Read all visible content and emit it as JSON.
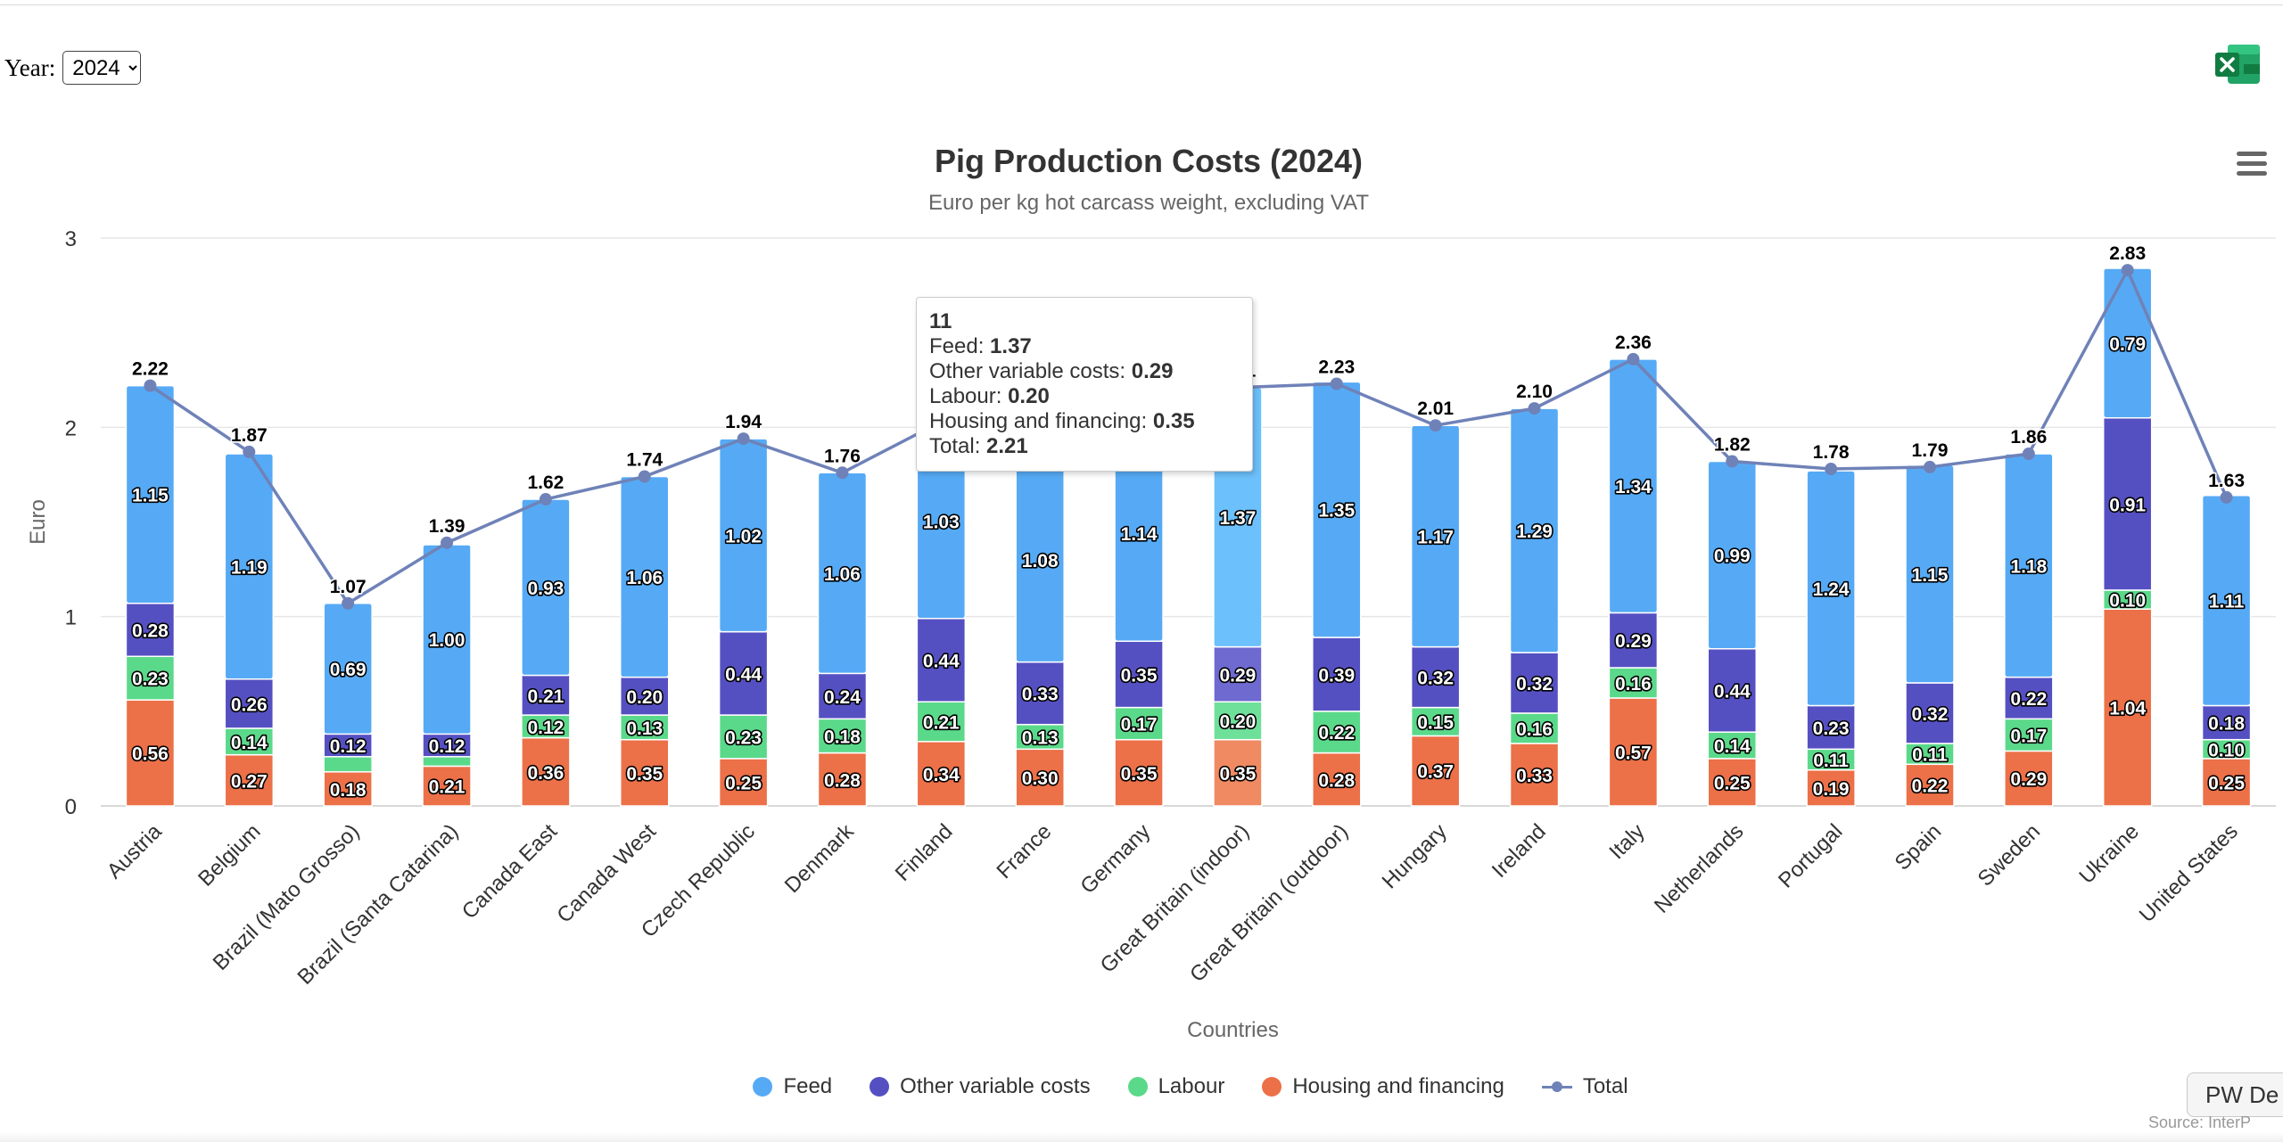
{
  "controls": {
    "year_label": "Year:",
    "year_options": [
      "2024"
    ],
    "year_selected": "2024"
  },
  "icons": {
    "excel": "excel-export-icon",
    "menu": "hamburger-menu-icon"
  },
  "colors": {
    "feed": "#56aaf5",
    "other": "#5550c2",
    "labour": "#5bd98a",
    "housing": "#ec7048",
    "total": "#6f82b8"
  },
  "chart_data": {
    "type": "bar",
    "stacked": true,
    "title": "Pig Production Costs (2024)",
    "subtitle": "Euro per kg hot carcass weight, excluding VAT",
    "xlabel": "Countries",
    "ylabel": "Euro",
    "ylim": [
      0,
      3
    ],
    "yticks": [
      "0",
      "1",
      "2",
      "3"
    ],
    "grid": true,
    "legend_position": "bottom",
    "categories": [
      "Austria",
      "Belgium",
      "Brazil (Mato Grosso)",
      "Brazil (Santa Catarina)",
      "Canada East",
      "Canada West",
      "Czech Republic",
      "Denmark",
      "Finland",
      "France",
      "Germany",
      "Great Britain (indoor)",
      "Great Britain (outdoor)",
      "Hungary",
      "Ireland",
      "Italy",
      "Netherlands",
      "Portugal",
      "Spain",
      "Sweden",
      "Ukraine",
      "United States"
    ],
    "series": [
      {
        "name": "Housing and financing",
        "values": [
          0.56,
          0.27,
          0.18,
          0.21,
          0.36,
          0.35,
          0.25,
          0.28,
          0.34,
          0.3,
          0.35,
          0.35,
          0.28,
          0.37,
          0.33,
          0.57,
          0.25,
          0.19,
          0.22,
          0.29,
          1.04,
          0.25
        ]
      },
      {
        "name": "Labour",
        "values": [
          0.23,
          0.14,
          0.08,
          0.05,
          0.12,
          0.13,
          0.23,
          0.18,
          0.21,
          0.13,
          0.17,
          0.2,
          0.22,
          0.15,
          0.16,
          0.16,
          0.14,
          0.11,
          0.11,
          0.17,
          0.1,
          0.1
        ]
      },
      {
        "name": "Other variable costs",
        "values": [
          0.28,
          0.26,
          0.12,
          0.12,
          0.21,
          0.2,
          0.44,
          0.24,
          0.44,
          0.33,
          0.35,
          0.29,
          0.39,
          0.32,
          0.32,
          0.29,
          0.44,
          0.23,
          0.32,
          0.22,
          0.91,
          0.18
        ]
      },
      {
        "name": "Feed",
        "values": [
          1.15,
          1.19,
          0.69,
          1.0,
          0.93,
          1.06,
          1.02,
          1.06,
          1.03,
          1.08,
          1.14,
          1.37,
          1.35,
          1.17,
          1.29,
          1.34,
          0.99,
          1.24,
          1.15,
          1.18,
          0.79,
          1.11
        ]
      },
      {
        "name": "Total",
        "values": [
          2.22,
          1.87,
          1.07,
          1.39,
          1.62,
          1.74,
          1.94,
          1.76,
          2.03,
          1.84,
          2.01,
          2.21,
          2.23,
          2.01,
          2.1,
          2.36,
          1.82,
          1.78,
          1.79,
          1.86,
          2.83,
          1.63
        ]
      }
    ],
    "value_labels": {
      "Housing and financing": [
        "0.56",
        "0.27",
        "0.18",
        "0.21",
        "0.36",
        "0.35",
        "0.25",
        "0.28",
        "0.34",
        "0.30",
        "0.35",
        "0.35",
        "0.28",
        "0.37",
        "0.33",
        "0.57",
        "0.25",
        "0.19",
        "0.22",
        "0.29",
        "1.04",
        "0.25"
      ],
      "Labour": [
        "0.23",
        "0.14",
        "",
        "",
        "0.12",
        "0.13",
        "0.23",
        "0.18",
        "0.21",
        "0.13",
        "0.17",
        "0.20",
        "0.22",
        "0.15",
        "0.16",
        "0.16",
        "0.14",
        "0.11",
        "0.11",
        "0.17",
        "0.10",
        "0.10"
      ],
      "Other variable costs": [
        "0.28",
        "0.26",
        "0.12",
        "0.12",
        "0.21",
        "0.20",
        "0.44",
        "0.24",
        "0.44",
        "0.33",
        "0.35",
        "0.29",
        "0.39",
        "0.32",
        "0.32",
        "0.29",
        "0.44",
        "0.23",
        "0.32",
        "0.22",
        "0.91",
        "0.18"
      ],
      "Feed": [
        "1.15",
        "1.19",
        "0.69",
        "1.00",
        "0.93",
        "1.06",
        "1.02",
        "1.06",
        "1.03",
        "1.08",
        "1.14",
        "1.37",
        "1.35",
        "1.17",
        "1.29",
        "1.34",
        "0.99",
        "1.24",
        "1.15",
        "1.18",
        "0.79",
        "1.11"
      ],
      "Total": [
        "2.22",
        "1.87",
        "1.07",
        "1.39",
        "1.62",
        "1.74",
        "1.94",
        "1.76",
        "",
        "",
        "",
        "2.21",
        "2.23",
        "2.01",
        "2.10",
        "2.36",
        "1.82",
        "1.78",
        "1.79",
        "1.86",
        "2.83",
        "1.63"
      ]
    },
    "highlighted_index": 11
  },
  "tooltip": {
    "header": "11",
    "rows": [
      {
        "label": "Feed: ",
        "value": "1.37"
      },
      {
        "label": "Other variable costs: ",
        "value": "0.29"
      },
      {
        "label": "Labour: ",
        "value": "0.20"
      },
      {
        "label": "Housing and financing: ",
        "value": "0.35"
      },
      {
        "label": "Total: ",
        "value": "2.21"
      }
    ]
  },
  "legend": [
    {
      "label": "Feed",
      "color": "#56aaf5",
      "marker": "dot"
    },
    {
      "label": "Other variable costs",
      "color": "#5550c2",
      "marker": "dot"
    },
    {
      "label": "Labour",
      "color": "#5bd98a",
      "marker": "dot"
    },
    {
      "label": "Housing and financing",
      "color": "#ec7048",
      "marker": "dot"
    },
    {
      "label": "Total",
      "color": "#6f82b8",
      "marker": "line"
    }
  ],
  "footer": {
    "button_label": "PW De",
    "credit": "Source: InterP"
  }
}
